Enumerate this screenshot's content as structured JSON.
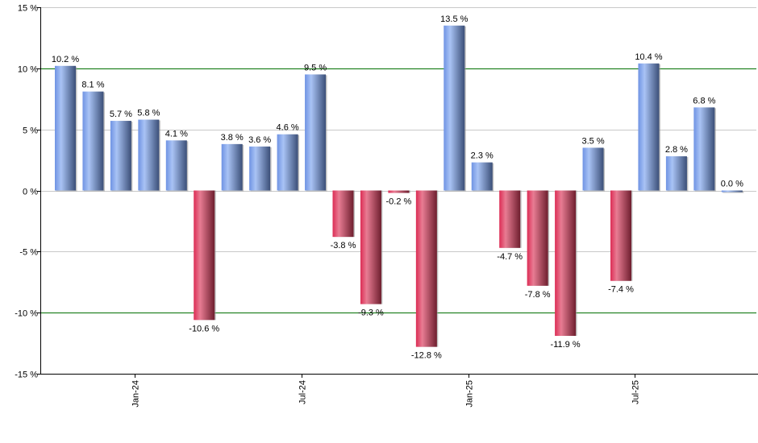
{
  "chart_data": {
    "type": "bar",
    "title": "",
    "xlabel": "",
    "ylabel": "",
    "ylim": [
      -15,
      15
    ],
    "yticks": [
      "15 %",
      "10 %",
      "5 %",
      "0 %",
      "-5 %",
      "-10 %",
      "-15 %"
    ],
    "ytick_values": [
      15,
      10,
      5,
      0,
      -5,
      -10,
      -15
    ],
    "xtick_labels": [
      {
        "label": "Jan-24",
        "index": 2.5
      },
      {
        "label": "Jul-24",
        "index": 8.5
      },
      {
        "label": "Jan-25",
        "index": 14.5
      },
      {
        "label": "Jul-25",
        "index": 20.5
      }
    ],
    "reference_lines": [
      10,
      -10
    ],
    "grid": true,
    "legend": "none",
    "values": [
      10.2,
      8.1,
      5.7,
      5.8,
      4.1,
      -10.6,
      3.8,
      3.6,
      4.6,
      9.5,
      -3.8,
      -9.3,
      -0.2,
      -12.8,
      13.5,
      2.3,
      -4.7,
      -7.8,
      -11.9,
      3.5,
      -7.4,
      10.4,
      2.8,
      6.8,
      0.0
    ],
    "labels": [
      "10.2 %",
      "8.1 %",
      "5.7 %",
      "5.8 %",
      "4.1 %",
      "-10.6 %",
      "3.8 %",
      "3.6 %",
      "4.6 %",
      "9.5 %",
      "-3.8 %",
      "-9.3 %",
      "-0.2 %",
      "-12.8 %",
      "13.5 %",
      "2.3 %",
      "-4.7 %",
      "-7.8 %",
      "-11.9 %",
      "3.5 %",
      "-7.4 %",
      "10.4 %",
      "2.8 %",
      "6.8 %",
      "0.0 %"
    ],
    "colors": {
      "positive": "#7a9be0",
      "negative": "#d8345a",
      "reference": "#007000",
      "grid": "#c8c8c8"
    }
  }
}
